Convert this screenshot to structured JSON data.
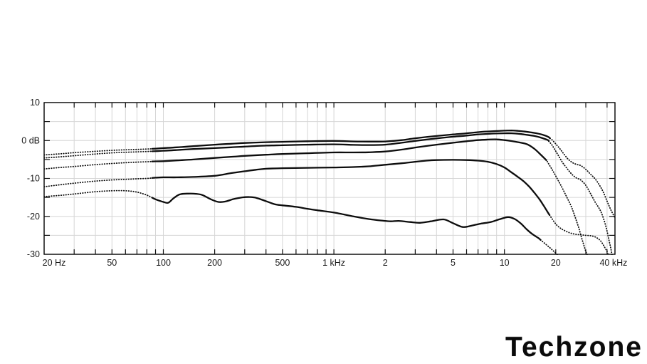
{
  "page": {
    "background": "#ffffff"
  },
  "branding": {
    "logo_text": "Techzone",
    "logo_color": "#0a0a0a"
  },
  "chart_data": {
    "type": "line",
    "title": "",
    "description": "Frequency response plot, five black curves; dotted below ~86 Hz and above ~17 kHz, solid between",
    "grid": {
      "show": true,
      "color": "#d6d6d6"
    },
    "frame_color": "#000000",
    "curve_color": "#0d0d0d",
    "legend": "none",
    "x_axis": {
      "scale": "log",
      "min_hz": 20,
      "max_hz": 44500,
      "tick_labels": [
        {
          "f": 20,
          "text": "20 Hz"
        },
        {
          "f": 50,
          "text": "50"
        },
        {
          "f": 100,
          "text": "100"
        },
        {
          "f": 200,
          "text": "200"
        },
        {
          "f": 500,
          "text": "500"
        },
        {
          "f": 1000,
          "text": "1 kHz"
        },
        {
          "f": 2000,
          "text": "2"
        },
        {
          "f": 5000,
          "text": "5"
        },
        {
          "f": 10000,
          "text": "10"
        },
        {
          "f": 20000,
          "text": "20"
        },
        {
          "f": 40000,
          "text": "40 kHz"
        }
      ],
      "minor_tick_freqs": [
        30,
        40,
        50,
        60,
        70,
        80,
        90,
        100,
        200,
        300,
        400,
        500,
        600,
        700,
        800,
        900,
        1000,
        2000,
        3000,
        4000,
        5000,
        6000,
        7000,
        8000,
        9000,
        10000,
        20000,
        30000,
        40000
      ]
    },
    "y_axis": {
      "unit": "dB",
      "min_db": -30,
      "max_db": 10,
      "grid_step_db": 5,
      "tick_labels": [
        {
          "db": 10,
          "text": "10"
        },
        {
          "db": 0,
          "text": "0 dB"
        },
        {
          "db": -10,
          "text": "-10"
        },
        {
          "db": -20,
          "text": "-20"
        },
        {
          "db": -30,
          "text": "-30"
        }
      ],
      "minor_tick_dbs": [
        5,
        0,
        -5,
        -10,
        -15,
        -20,
        -25
      ]
    },
    "series": [
      {
        "name": "curve-1-top",
        "solid_range_hz": [
          86,
          18500
        ],
        "points": [
          [
            20,
            -3.8
          ],
          [
            25,
            -3.5
          ],
          [
            30,
            -3.2
          ],
          [
            40,
            -2.85
          ],
          [
            50,
            -2.6
          ],
          [
            60,
            -2.45
          ],
          [
            70,
            -2.35
          ],
          [
            80,
            -2.25
          ],
          [
            90,
            -2.15
          ],
          [
            100,
            -2.0
          ],
          [
            120,
            -1.8
          ],
          [
            150,
            -1.5
          ],
          [
            200,
            -1.1
          ],
          [
            250,
            -0.85
          ],
          [
            300,
            -0.65
          ],
          [
            400,
            -0.45
          ],
          [
            500,
            -0.35
          ],
          [
            700,
            -0.2
          ],
          [
            1000,
            -0.1
          ],
          [
            1300,
            -0.25
          ],
          [
            1600,
            -0.3
          ],
          [
            2000,
            -0.25
          ],
          [
            2500,
            0.1
          ],
          [
            3000,
            0.6
          ],
          [
            4000,
            1.2
          ],
          [
            5000,
            1.6
          ],
          [
            6000,
            1.9
          ],
          [
            7000,
            2.2
          ],
          [
            8000,
            2.4
          ],
          [
            9000,
            2.5
          ],
          [
            10000,
            2.6
          ],
          [
            11000,
            2.65
          ],
          [
            12000,
            2.55
          ],
          [
            13000,
            2.4
          ],
          [
            15000,
            2.0
          ],
          [
            16500,
            1.6
          ],
          [
            18000,
            1.0
          ],
          [
            19000,
            0.2
          ],
          [
            20000,
            -0.9
          ],
          [
            21000,
            -2.0
          ],
          [
            22000,
            -3.2
          ],
          [
            23500,
            -4.8
          ],
          [
            25000,
            -5.8
          ],
          [
            26500,
            -6.3
          ],
          [
            28000,
            -6.6
          ],
          [
            30000,
            -7.6
          ],
          [
            32000,
            -8.9
          ],
          [
            34000,
            -10.1
          ],
          [
            36000,
            -11.7
          ],
          [
            38000,
            -13.6
          ],
          [
            40000,
            -16.0
          ],
          [
            42000,
            -18.2
          ],
          [
            44400,
            -20.3
          ]
        ]
      },
      {
        "name": "curve-2",
        "solid_range_hz": [
          86,
          18200
        ],
        "points": [
          [
            20,
            -4.6
          ],
          [
            25,
            -4.3
          ],
          [
            30,
            -4.0
          ],
          [
            40,
            -3.55
          ],
          [
            50,
            -3.25
          ],
          [
            60,
            -3.1
          ],
          [
            70,
            -3.0
          ],
          [
            80,
            -2.9
          ],
          [
            90,
            -2.8
          ],
          [
            100,
            -2.7
          ],
          [
            120,
            -2.5
          ],
          [
            150,
            -2.25
          ],
          [
            200,
            -2.0
          ],
          [
            250,
            -1.8
          ],
          [
            300,
            -1.6
          ],
          [
            400,
            -1.35
          ],
          [
            500,
            -1.25
          ],
          [
            700,
            -1.1
          ],
          [
            1000,
            -1.0
          ],
          [
            1300,
            -1.15
          ],
          [
            1600,
            -1.2
          ],
          [
            2000,
            -1.1
          ],
          [
            2500,
            -0.6
          ],
          [
            3000,
            -0.1
          ],
          [
            4000,
            0.55
          ],
          [
            5000,
            1.0
          ],
          [
            6000,
            1.3
          ],
          [
            7000,
            1.6
          ],
          [
            8000,
            1.75
          ],
          [
            9000,
            1.85
          ],
          [
            10000,
            1.9
          ],
          [
            11000,
            1.9
          ],
          [
            12000,
            1.8
          ],
          [
            13000,
            1.6
          ],
          [
            15000,
            1.2
          ],
          [
            16500,
            0.7
          ],
          [
            18000,
            0.1
          ],
          [
            19000,
            -1.2
          ],
          [
            20000,
            -2.8
          ],
          [
            21000,
            -4.4
          ],
          [
            22000,
            -5.9
          ],
          [
            23500,
            -7.6
          ],
          [
            25000,
            -9.0
          ],
          [
            26500,
            -9.9
          ],
          [
            28000,
            -10.4
          ],
          [
            30000,
            -11.8
          ],
          [
            32000,
            -14.0
          ],
          [
            34000,
            -16.2
          ],
          [
            35500,
            -17.5
          ],
          [
            37000,
            -19.0
          ],
          [
            38700,
            -21.5
          ],
          [
            40000,
            -23.9
          ],
          [
            41000,
            -26.2
          ],
          [
            42000,
            -28.3
          ],
          [
            42900,
            -30.5
          ]
        ]
      },
      {
        "name": "curve-3",
        "solid_range_hz": [
          86,
          17600
        ],
        "points": [
          [
            20,
            -7.5
          ],
          [
            25,
            -7.1
          ],
          [
            30,
            -6.85
          ],
          [
            40,
            -6.35
          ],
          [
            50,
            -6.05
          ],
          [
            60,
            -5.85
          ],
          [
            70,
            -5.7
          ],
          [
            80,
            -5.6
          ],
          [
            90,
            -5.5
          ],
          [
            100,
            -5.45
          ],
          [
            120,
            -5.25
          ],
          [
            150,
            -5.0
          ],
          [
            200,
            -4.6
          ],
          [
            250,
            -4.3
          ],
          [
            300,
            -4.05
          ],
          [
            400,
            -3.75
          ],
          [
            500,
            -3.55
          ],
          [
            700,
            -3.35
          ],
          [
            1000,
            -3.15
          ],
          [
            1300,
            -3.15
          ],
          [
            1600,
            -3.1
          ],
          [
            2000,
            -2.9
          ],
          [
            2500,
            -2.4
          ],
          [
            3000,
            -1.85
          ],
          [
            4000,
            -1.1
          ],
          [
            5000,
            -0.6
          ],
          [
            6000,
            -0.2
          ],
          [
            7000,
            0.1
          ],
          [
            8000,
            0.25
          ],
          [
            9000,
            0.3
          ],
          [
            10000,
            0.1
          ],
          [
            11000,
            -0.15
          ],
          [
            12200,
            -0.5
          ],
          [
            13600,
            -1.0
          ],
          [
            15000,
            -2.2
          ],
          [
            16300,
            -3.7
          ],
          [
            17700,
            -5.3
          ],
          [
            19000,
            -7.6
          ],
          [
            19800,
            -9.0
          ],
          [
            21000,
            -11.1
          ],
          [
            22000,
            -12.8
          ],
          [
            23200,
            -14.9
          ],
          [
            24500,
            -17.1
          ],
          [
            25500,
            -19.1
          ],
          [
            26500,
            -21.3
          ],
          [
            27400,
            -23.3
          ],
          [
            28200,
            -25.3
          ],
          [
            29000,
            -27.1
          ],
          [
            29800,
            -28.8
          ],
          [
            30700,
            -30.5
          ]
        ]
      },
      {
        "name": "curve-4",
        "solid_range_hz": [
          86,
          18400
        ],
        "points": [
          [
            20,
            -12.2
          ],
          [
            25,
            -11.65
          ],
          [
            30,
            -11.25
          ],
          [
            40,
            -10.7
          ],
          [
            50,
            -10.4
          ],
          [
            60,
            -10.25
          ],
          [
            70,
            -10.1
          ],
          [
            80,
            -10.0
          ],
          [
            90,
            -9.8
          ],
          [
            100,
            -9.7
          ],
          [
            120,
            -9.7
          ],
          [
            150,
            -9.6
          ],
          [
            200,
            -9.3
          ],
          [
            250,
            -8.6
          ],
          [
            300,
            -8.1
          ],
          [
            350,
            -7.7
          ],
          [
            400,
            -7.45
          ],
          [
            500,
            -7.3
          ],
          [
            700,
            -7.2
          ],
          [
            1000,
            -7.1
          ],
          [
            1300,
            -7.0
          ],
          [
            1600,
            -6.8
          ],
          [
            2000,
            -6.4
          ],
          [
            2500,
            -6.0
          ],
          [
            3000,
            -5.6
          ],
          [
            3500,
            -5.3
          ],
          [
            4000,
            -5.15
          ],
          [
            5000,
            -5.1
          ],
          [
            6000,
            -5.15
          ],
          [
            7000,
            -5.3
          ],
          [
            8000,
            -5.6
          ],
          [
            9000,
            -6.2
          ],
          [
            10000,
            -7.1
          ],
          [
            11000,
            -8.4
          ],
          [
            12000,
            -9.6
          ],
          [
            13000,
            -10.8
          ],
          [
            14000,
            -12.2
          ],
          [
            15000,
            -13.8
          ],
          [
            16000,
            -15.4
          ],
          [
            17000,
            -17.2
          ],
          [
            18000,
            -19.0
          ],
          [
            19000,
            -20.6
          ],
          [
            20000,
            -22.0
          ],
          [
            21000,
            -22.9
          ],
          [
            22000,
            -23.5
          ],
          [
            24000,
            -24.3
          ],
          [
            26000,
            -24.7
          ],
          [
            28000,
            -24.85
          ],
          [
            30000,
            -25.0
          ],
          [
            32000,
            -25.1
          ],
          [
            34000,
            -25.4
          ],
          [
            35500,
            -25.9
          ],
          [
            36700,
            -26.5
          ],
          [
            38000,
            -27.5
          ],
          [
            39000,
            -28.4
          ],
          [
            40000,
            -29.3
          ],
          [
            40800,
            -30.4
          ]
        ]
      },
      {
        "name": "curve-5-bottom",
        "solid_range_hz": [
          86,
          16300
        ],
        "points": [
          [
            20,
            -14.8
          ],
          [
            25,
            -14.45
          ],
          [
            30,
            -14.1
          ],
          [
            40,
            -13.5
          ],
          [
            50,
            -13.25
          ],
          [
            60,
            -13.25
          ],
          [
            70,
            -13.6
          ],
          [
            80,
            -14.4
          ],
          [
            90,
            -15.5
          ],
          [
            100,
            -16.2
          ],
          [
            107,
            -16.4
          ],
          [
            115,
            -15.2
          ],
          [
            125,
            -14.2
          ],
          [
            140,
            -14.0
          ],
          [
            155,
            -14.05
          ],
          [
            170,
            -14.4
          ],
          [
            190,
            -15.5
          ],
          [
            210,
            -16.2
          ],
          [
            230,
            -16.1
          ],
          [
            260,
            -15.4
          ],
          [
            290,
            -15.0
          ],
          [
            320,
            -14.9
          ],
          [
            350,
            -15.1
          ],
          [
            400,
            -16.0
          ],
          [
            450,
            -16.8
          ],
          [
            500,
            -17.1
          ],
          [
            600,
            -17.5
          ],
          [
            700,
            -18.0
          ],
          [
            800,
            -18.4
          ],
          [
            1000,
            -19.0
          ],
          [
            1300,
            -20.0
          ],
          [
            1600,
            -20.7
          ],
          [
            1900,
            -21.1
          ],
          [
            2150,
            -21.3
          ],
          [
            2400,
            -21.2
          ],
          [
            2800,
            -21.5
          ],
          [
            3200,
            -21.7
          ],
          [
            3700,
            -21.3
          ],
          [
            4400,
            -20.8
          ],
          [
            5000,
            -21.8
          ],
          [
            5700,
            -22.8
          ],
          [
            6500,
            -22.4
          ],
          [
            7300,
            -21.9
          ],
          [
            8300,
            -21.5
          ],
          [
            9300,
            -20.8
          ],
          [
            10500,
            -20.2
          ],
          [
            11500,
            -20.7
          ],
          [
            12500,
            -21.9
          ],
          [
            13500,
            -23.4
          ],
          [
            14500,
            -24.6
          ],
          [
            15800,
            -25.7
          ],
          [
            17000,
            -26.9
          ],
          [
            18500,
            -28.3
          ],
          [
            19800,
            -29.5
          ],
          [
            20800,
            -30.5
          ]
        ]
      }
    ]
  }
}
